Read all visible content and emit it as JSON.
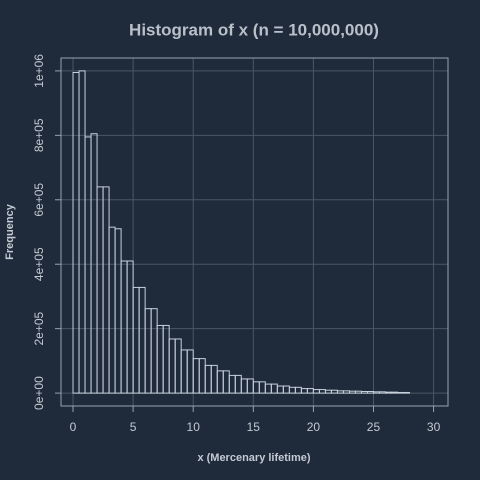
{
  "chart_data": {
    "type": "histogram",
    "title": "Histogram of x (n = 10,000,000)",
    "x_label": "x (Mercenary lifetime)",
    "y_label": "Frequency",
    "bins": [
      0,
      0.5,
      1,
      1.5,
      2,
      2.5,
      3,
      3.5,
      4,
      4.5,
      5,
      5.5,
      6,
      6.5,
      7,
      7.5,
      8,
      8.5,
      9,
      9.5,
      10,
      10.5,
      11,
      11.5,
      12,
      12.5,
      13,
      13.5,
      14,
      14.5,
      15,
      15.5,
      16,
      16.5,
      17,
      17.5,
      18,
      18.5,
      19,
      19.5,
      20,
      20.5,
      21,
      21.5,
      22,
      22.5,
      23,
      23.5,
      24,
      24.5,
      25,
      25.5,
      26,
      26.5,
      27,
      27.5,
      28
    ],
    "values": [
      995000,
      1000000,
      795000,
      805000,
      640000,
      640000,
      515000,
      510000,
      410000,
      410000,
      328000,
      328000,
      262000,
      262000,
      210000,
      210000,
      168000,
      168000,
      134000,
      134000,
      107000,
      107000,
      86000,
      86000,
      69000,
      69000,
      55000,
      55000,
      44000,
      44000,
      35000,
      35000,
      28000,
      28000,
      22000,
      22000,
      18000,
      18000,
      14000,
      14000,
      11000,
      11000,
      9000,
      9000,
      7000,
      7000,
      6000,
      6000,
      5000,
      5000,
      4000,
      4000,
      3000,
      3000,
      2000,
      2000
    ],
    "color": "#c8d0dc",
    "xlim": [
      -1,
      31.2
    ],
    "xticks": [
      0,
      5,
      10,
      15,
      20,
      25,
      30
    ],
    "ylim": [
      -40000,
      1040000
    ],
    "yticks": [
      {
        "value": 0,
        "label": "0e+00"
      },
      {
        "value": 200000,
        "label": "2e+05"
      },
      {
        "value": 400000,
        "label": "4e+05"
      },
      {
        "value": 600000,
        "label": "6e+05"
      },
      {
        "value": 800000,
        "label": "8e+05"
      },
      {
        "value": 1000000,
        "label": "1e+06"
      }
    ],
    "grid": true
  }
}
